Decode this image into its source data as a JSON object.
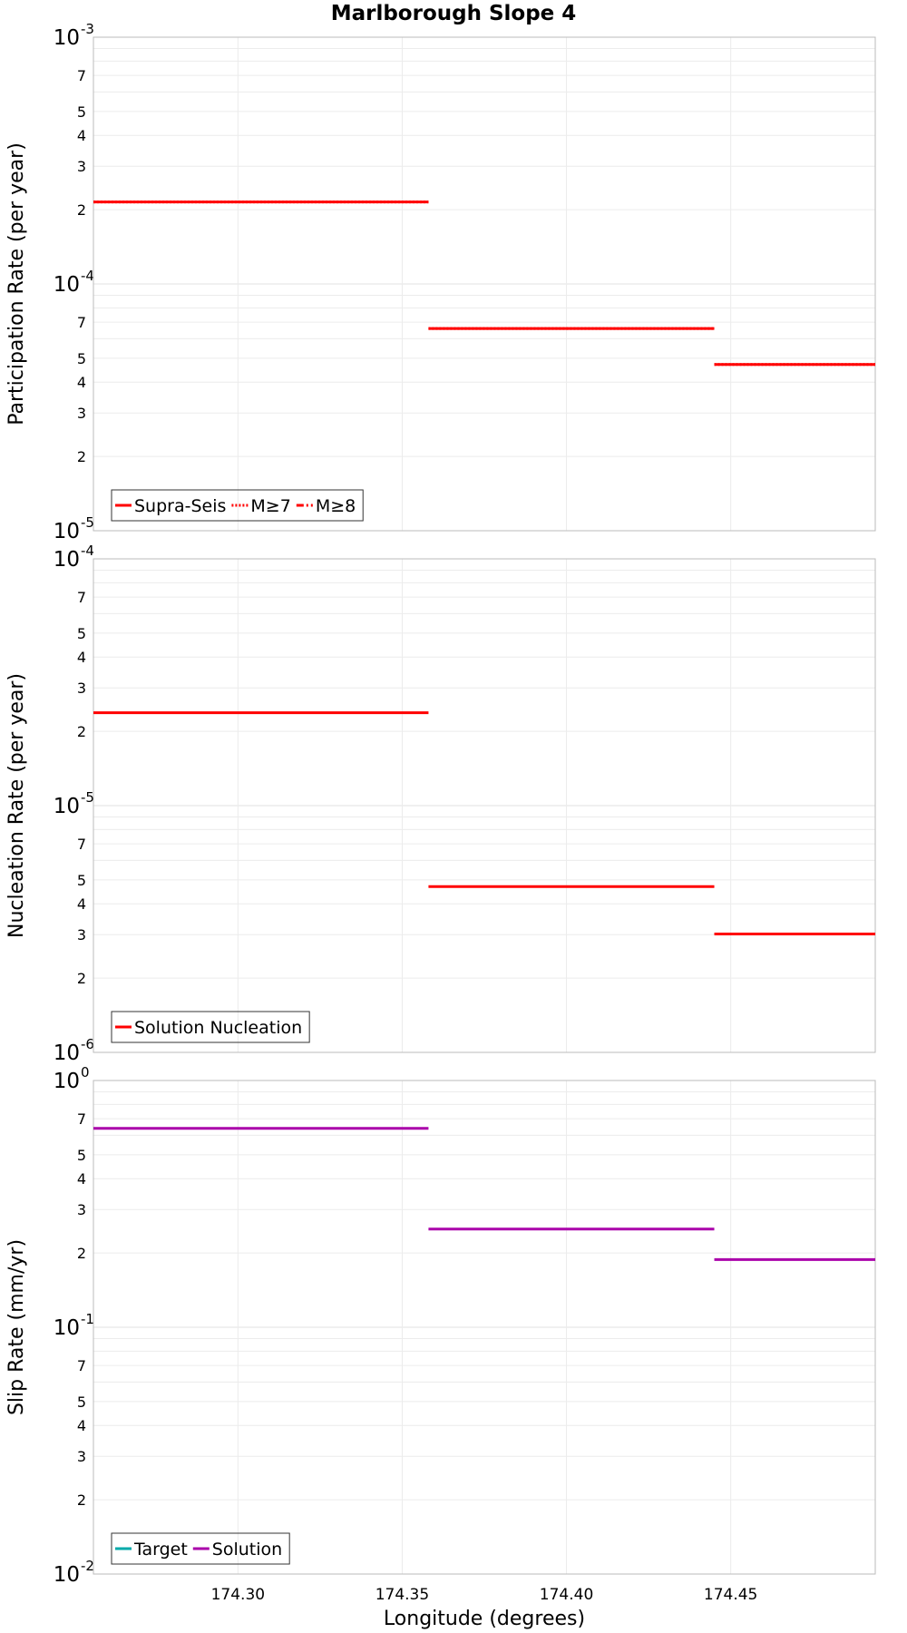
{
  "chart_data": [
    {
      "type": "line",
      "title": "Marlborough Slope 4",
      "ylabel": "Participation Rate (per year)",
      "xlabel": "",
      "yscale": "log",
      "xlim": [
        174.256,
        174.494
      ],
      "ylim": [
        1e-05,
        0.001
      ],
      "x_ticks": [
        "174.30",
        "174.35",
        "174.40",
        "174.45"
      ],
      "y_major_ticks": [
        {
          "base": "10",
          "exp": "-5"
        },
        {
          "base": "10",
          "exp": "-4"
        },
        {
          "base": "10",
          "exp": "-3"
        }
      ],
      "y_minor_ticks": [
        "2",
        "3",
        "4",
        "5",
        "7"
      ],
      "grid": true,
      "legend_position": "bottom-left",
      "legend": [
        {
          "label": "Supra-Seis",
          "style": "solid",
          "color": "#ff0000"
        },
        {
          "label": "M≥7",
          "style": "dotted",
          "color": "#ff0000"
        },
        {
          "label": "M≥8",
          "style": "dashdot",
          "color": "#ff0000"
        }
      ],
      "series": [
        {
          "name": "Supra-Seis",
          "color": "#ff0000",
          "style": "solid",
          "segments": [
            [
              174.256,
              174.358,
              0.000215
            ],
            [
              174.358,
              174.445,
              6.6e-05
            ],
            [
              174.445,
              174.494,
              4.72e-05
            ]
          ]
        },
        {
          "name": "M≥7",
          "color": "#ff0000",
          "style": "dotted",
          "segments": [
            [
              174.256,
              174.358,
              0.000215
            ],
            [
              174.358,
              174.445,
              6.6e-05
            ],
            [
              174.445,
              174.494,
              4.72e-05
            ]
          ]
        }
      ]
    },
    {
      "type": "line",
      "title": "",
      "ylabel": "Nucleation Rate (per year)",
      "xlabel": "",
      "yscale": "log",
      "xlim": [
        174.256,
        174.494
      ],
      "ylim": [
        1e-06,
        0.0001
      ],
      "x_ticks": [
        "174.30",
        "174.35",
        "174.40",
        "174.45"
      ],
      "y_major_ticks": [
        {
          "base": "10",
          "exp": "-6"
        },
        {
          "base": "10",
          "exp": "-5"
        },
        {
          "base": "10",
          "exp": "-4"
        }
      ],
      "y_minor_ticks": [
        "2",
        "3",
        "4",
        "5",
        "7"
      ],
      "grid": true,
      "legend_position": "bottom-left",
      "legend": [
        {
          "label": "Solution Nucleation",
          "style": "solid",
          "color": "#ff0000"
        }
      ],
      "series": [
        {
          "name": "Solution Nucleation",
          "color": "#ff0000",
          "style": "solid",
          "segments": [
            [
              174.256,
              174.358,
              2.38e-05
            ],
            [
              174.358,
              174.445,
              4.7e-06
            ],
            [
              174.445,
              174.494,
              3.02e-06
            ]
          ]
        }
      ]
    },
    {
      "type": "line",
      "title": "",
      "ylabel": "Slip Rate (mm/yr)",
      "xlabel": "Longitude (degrees)",
      "yscale": "log",
      "xlim": [
        174.256,
        174.494
      ],
      "ylim": [
        0.01,
        1
      ],
      "x_ticks": [
        "174.30",
        "174.35",
        "174.40",
        "174.45"
      ],
      "y_major_ticks": [
        {
          "base": "10",
          "exp": "-2"
        },
        {
          "base": "10",
          "exp": "-1"
        },
        {
          "base": "10",
          "exp": "0"
        }
      ],
      "y_minor_ticks": [
        "2",
        "3",
        "4",
        "5",
        "7"
      ],
      "grid": true,
      "legend_position": "bottom-left",
      "legend": [
        {
          "label": "Target",
          "style": "solid",
          "color": "#00aaaa"
        },
        {
          "label": "Solution",
          "style": "solid",
          "color": "#aa00aa"
        }
      ],
      "series": [
        {
          "name": "Solution",
          "color": "#aa00aa",
          "style": "solid",
          "segments": [
            [
              174.256,
              174.358,
              0.64
            ],
            [
              174.358,
              174.445,
              0.25
            ],
            [
              174.445,
              174.494,
              0.188
            ]
          ]
        }
      ]
    }
  ]
}
